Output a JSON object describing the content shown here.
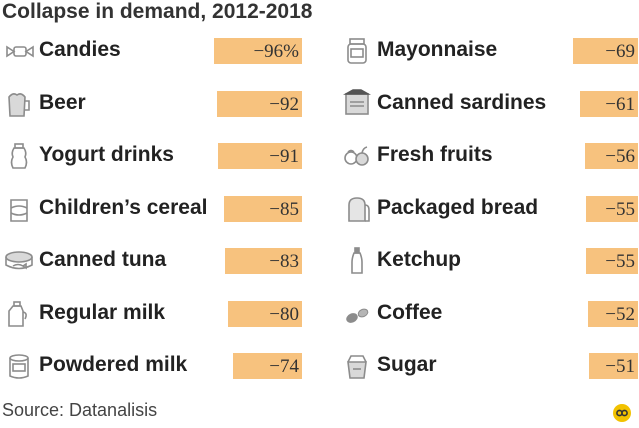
{
  "chart_data": {
    "type": "table",
    "title": "Collapse in demand, 2012-2018",
    "left": [
      {
        "label": "Candies",
        "value": "−96%",
        "num": -96,
        "icon": "candy-icon"
      },
      {
        "label": "Beer",
        "value": "−92",
        "num": -92,
        "icon": "beer-mug-icon"
      },
      {
        "label": "Yogurt drinks",
        "value": "−91",
        "num": -91,
        "icon": "yogurt-bottle-icon"
      },
      {
        "label": "Children’s cereal",
        "value": "−85",
        "num": -85,
        "icon": "cereal-box-icon"
      },
      {
        "label": "Canned tuna",
        "value": "−83",
        "num": -83,
        "icon": "tuna-can-icon"
      },
      {
        "label": "Regular milk",
        "value": "−80",
        "num": -80,
        "icon": "milk-jug-icon"
      },
      {
        "label": "Powdered milk",
        "value": "−74",
        "num": -74,
        "icon": "powdered-milk-can-icon"
      }
    ],
    "right": [
      {
        "label": "Mayonnaise",
        "value": "−69",
        "num": -69,
        "icon": "mayonnaise-jar-icon"
      },
      {
        "label": "Canned sardines",
        "value": "−61",
        "num": -61,
        "icon": "sardine-can-icon"
      },
      {
        "label": "Fresh fruits",
        "value": "−56",
        "num": -56,
        "icon": "fruits-icon"
      },
      {
        "label": "Packaged bread",
        "value": "−55",
        "num": -55,
        "icon": "bread-icon"
      },
      {
        "label": "Ketchup",
        "value": "−55",
        "num": -55,
        "icon": "ketchup-bottle-icon"
      },
      {
        "label": "Coffee",
        "value": "−52",
        "num": -52,
        "icon": "coffee-beans-icon"
      },
      {
        "label": "Sugar",
        "value": "−51",
        "num": -51,
        "icon": "sugar-bag-icon"
      }
    ]
  },
  "source": "Source: Datanalisis",
  "logo_icon": "wsj-logo-icon",
  "colors": {
    "bar": "#f7c27e",
    "icon": "#8c8c8c"
  }
}
